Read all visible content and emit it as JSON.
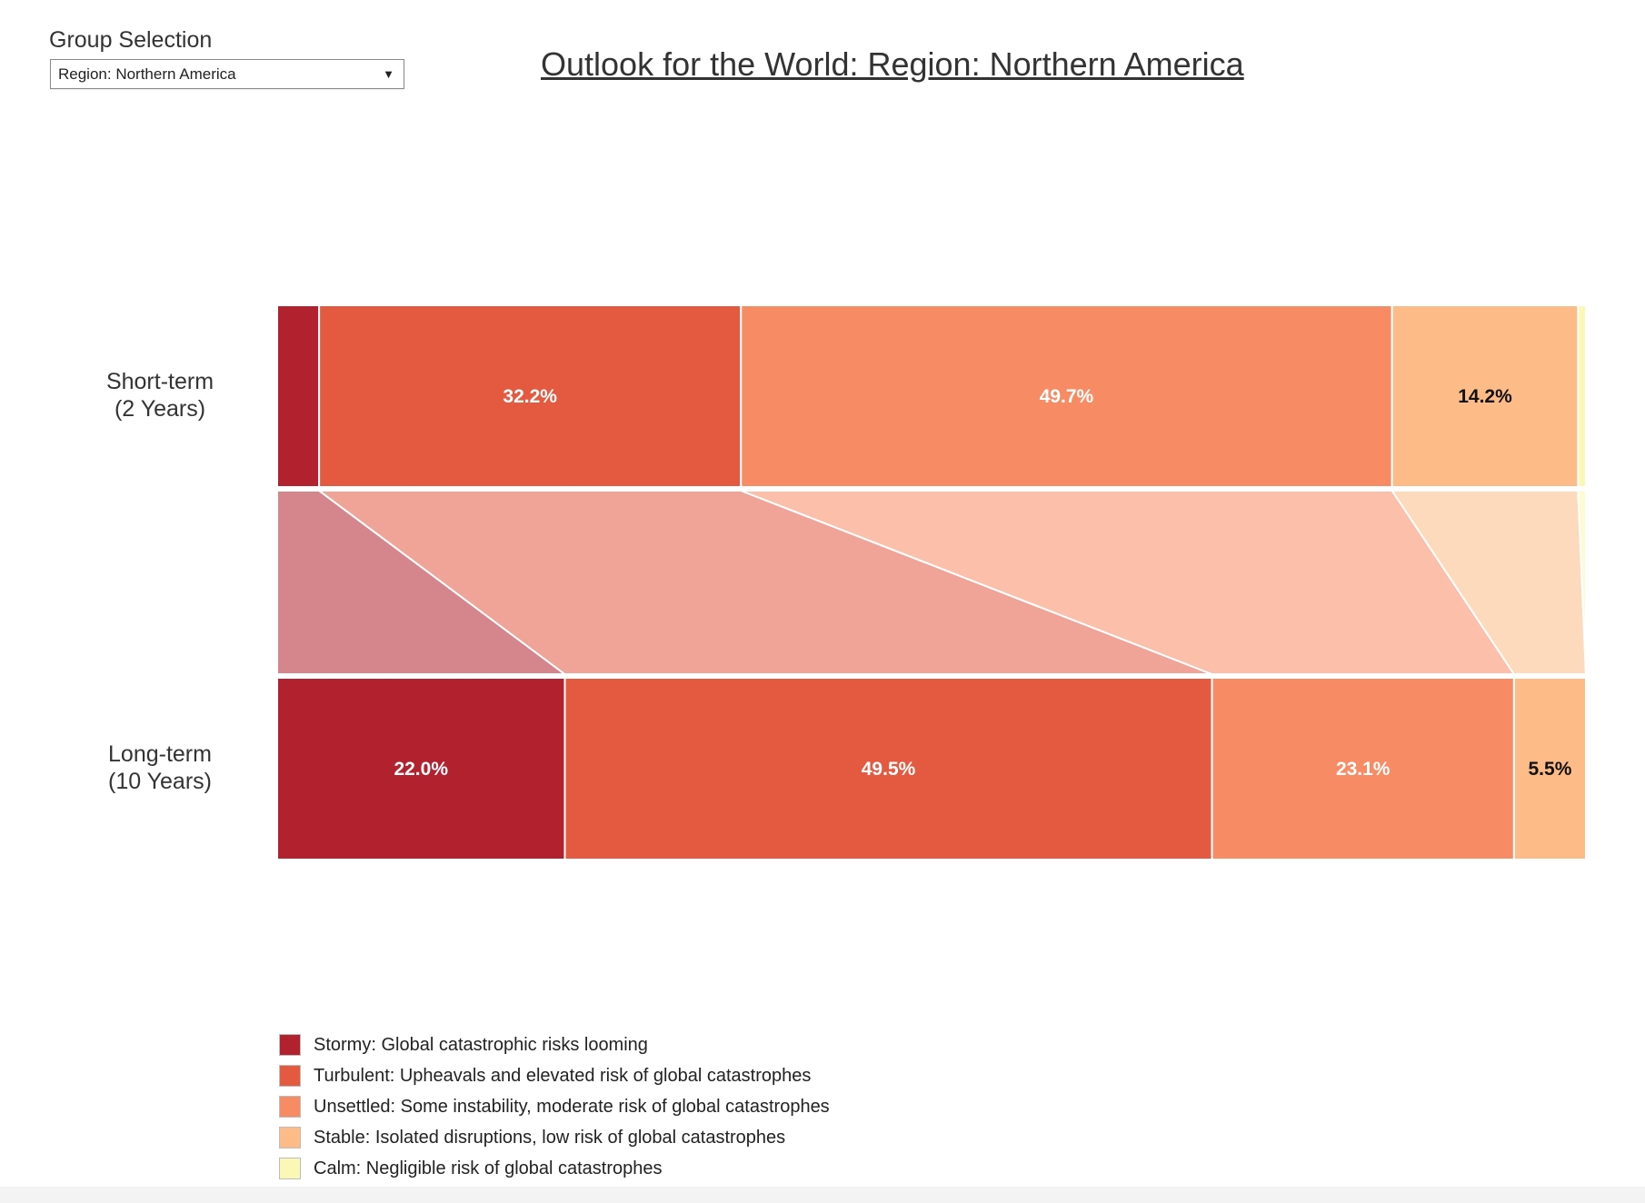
{
  "group_selection": {
    "label": "Group Selection",
    "value": "Region: Northern America"
  },
  "chart_data": {
    "type": "bar",
    "title": "Outlook for the World: Region: Northern America",
    "orientation": "horizontal-stacked-100",
    "categories": [
      "Short-term\n(2 Years)",
      "Long-term\n(10 Years)"
    ],
    "series": [
      {
        "name": "Stormy: Global catastrophic risks looming",
        "color": "#b2222e",
        "values": [
          3.2,
          22.0
        ],
        "label_color": "#ffffff"
      },
      {
        "name": "Turbulent: Upheavals and elevated risk of global catastrophes",
        "color": "#e35a41",
        "values": [
          32.2,
          49.5
        ],
        "label_color": "#ffffff"
      },
      {
        "name": "Unsettled: Some instability, moderate risk of global catastrophes",
        "color": "#f78b64",
        "values": [
          49.7,
          23.1
        ],
        "label_color": "#ffffff"
      },
      {
        "name": "Stable: Isolated disruptions, low risk of global catastrophes",
        "color": "#fdbb87",
        "values": [
          14.2,
          5.5
        ],
        "label_color": "#111111"
      },
      {
        "name": "Calm: Negligible risk of global catastrophes",
        "color": "#fbf7b4",
        "values": [
          0.6,
          0.0
        ],
        "label_color": "#111111"
      }
    ],
    "data_labels": [
      [
        "",
        "32.2%",
        "49.7%",
        "14.2%",
        ""
      ],
      [
        "22.0%",
        "49.5%",
        "23.1%",
        "5.5%",
        ""
      ]
    ],
    "xlim": [
      0,
      100
    ],
    "legend": "bottom-left",
    "connector_bands": true
  }
}
